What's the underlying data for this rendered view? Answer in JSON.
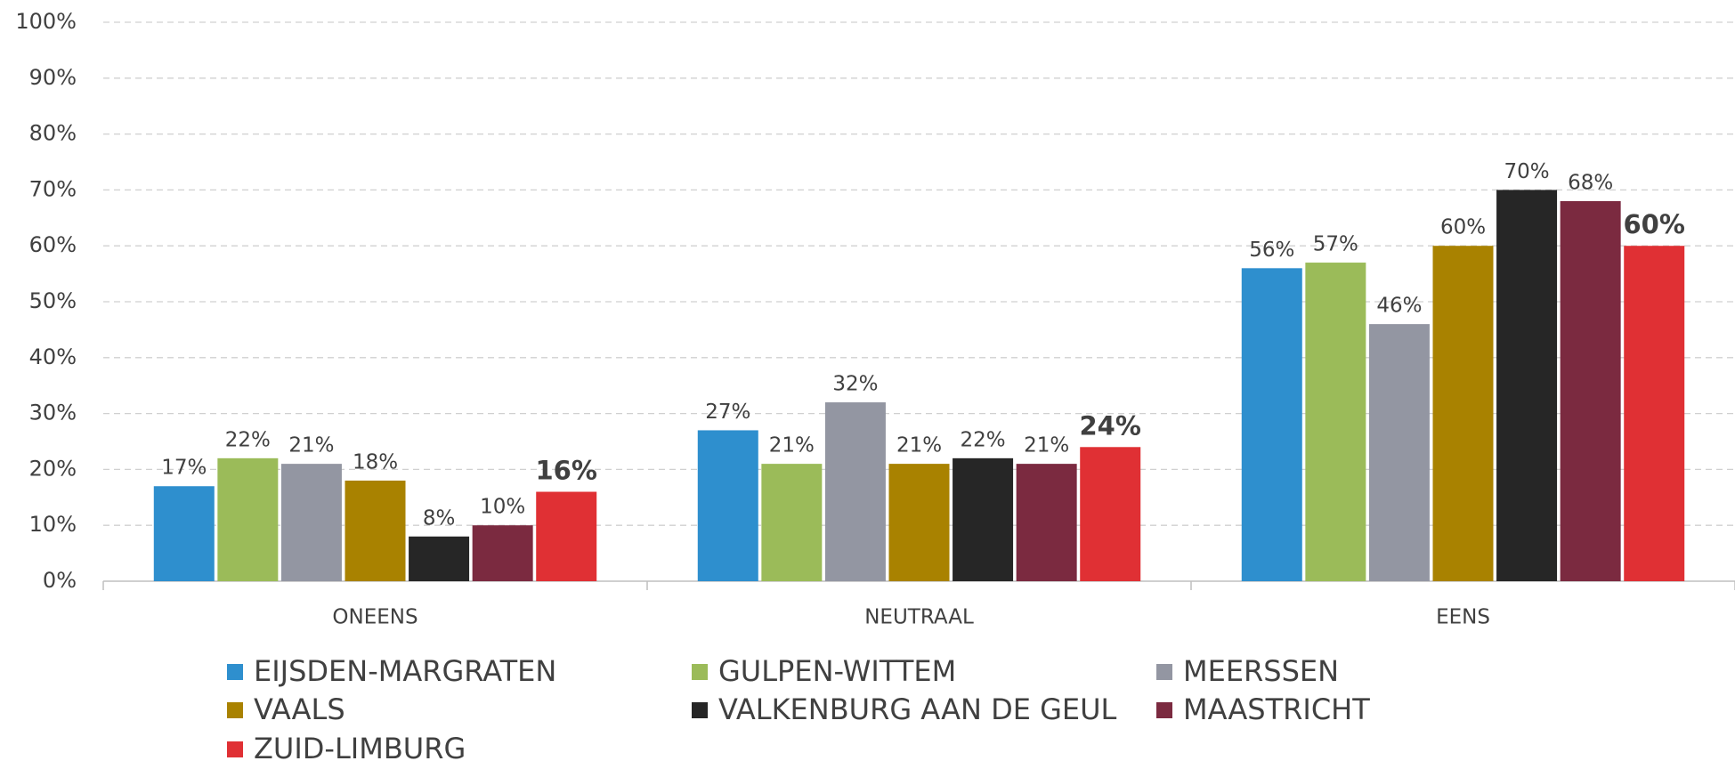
{
  "chart_data": {
    "type": "bar",
    "categories": [
      "ONEENS",
      "NEUTRAAL",
      "EENS"
    ],
    "series": [
      {
        "name": "EIJSDEN-MARGRATEN",
        "color": "#2e8fce",
        "values": [
          17,
          27,
          56
        ],
        "value_labels": [
          "17%",
          "27%",
          "56%"
        ]
      },
      {
        "name": "GULPEN-WITTEM",
        "color": "#9bbb59",
        "values": [
          22,
          21,
          57
        ],
        "value_labels": [
          "22%",
          "21%",
          "57%"
        ]
      },
      {
        "name": "MEERSSEN",
        "color": "#9396a2",
        "values": [
          21,
          32,
          46
        ],
        "value_labels": [
          "21%",
          "32%",
          "46%"
        ]
      },
      {
        "name": "VAALS",
        "color": "#a98200",
        "values": [
          18,
          21,
          60
        ],
        "value_labels": [
          "18%",
          "21%",
          "60%"
        ]
      },
      {
        "name": "VALKENBURG AAN DE GEUL",
        "color": "#262626",
        "values": [
          8,
          22,
          70
        ],
        "value_labels": [
          "8%",
          "22%",
          "70%"
        ]
      },
      {
        "name": "MAASTRICHT",
        "color": "#7b2a40",
        "values": [
          10,
          21,
          68
        ],
        "value_labels": [
          "10%",
          "21%",
          "68%"
        ]
      },
      {
        "name": "ZUID-LIMBURG",
        "color": "#e03034",
        "values": [
          16,
          24,
          60
        ],
        "value_labels": [
          "16%",
          "24%",
          "60%"
        ]
      }
    ],
    "ylim": [
      0,
      100
    ],
    "yticks": [
      {
        "value": 0,
        "label": "0%"
      },
      {
        "value": 10,
        "label": "10%"
      },
      {
        "value": 20,
        "label": "20%"
      },
      {
        "value": 30,
        "label": "30%"
      },
      {
        "value": 40,
        "label": "40%"
      },
      {
        "value": 50,
        "label": "50%"
      },
      {
        "value": 60,
        "label": "60%"
      },
      {
        "value": 70,
        "label": "70%"
      },
      {
        "value": 80,
        "label": "80%"
      },
      {
        "value": 90,
        "label": "90%"
      },
      {
        "value": 100,
        "label": "100%"
      }
    ],
    "grid": true,
    "legend": "bottom"
  }
}
